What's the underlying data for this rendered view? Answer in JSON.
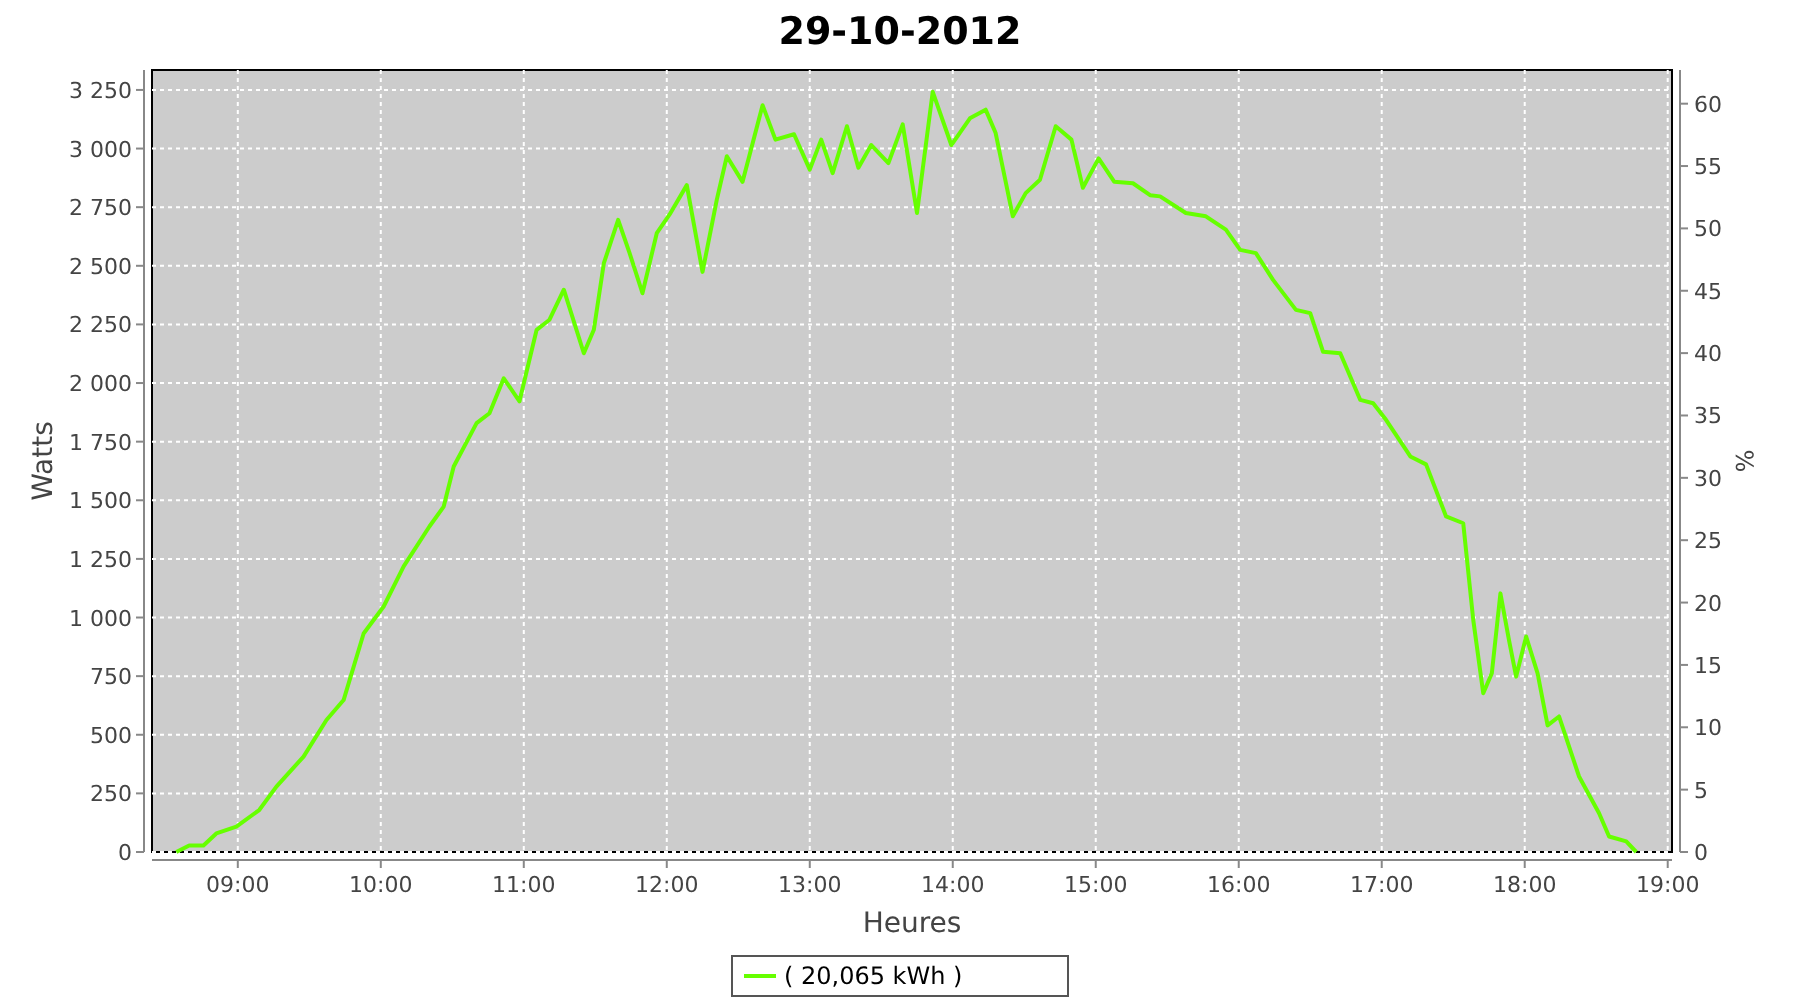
{
  "chart_data": {
    "type": "line",
    "title": "29-10-2012",
    "xlabel": "Heures",
    "ylabel": "Watts",
    "y2label": "%",
    "xlim": [
      8.4,
      19.03
    ],
    "xticks": [
      {
        "value": 9,
        "label": "09:00"
      },
      {
        "value": 10,
        "label": "10:00"
      },
      {
        "value": 11,
        "label": "11:00"
      },
      {
        "value": 12,
        "label": "12:00"
      },
      {
        "value": 13,
        "label": "13:00"
      },
      {
        "value": 14,
        "label": "14:00"
      },
      {
        "value": 15,
        "label": "15:00"
      },
      {
        "value": 16,
        "label": "16:00"
      },
      {
        "value": 17,
        "label": "17:00"
      },
      {
        "value": 18,
        "label": "18:00"
      },
      {
        "value": 19,
        "label": "19:00"
      }
    ],
    "ylim": [
      0,
      3335
    ],
    "yticks": [
      0,
      250,
      500,
      750,
      {
        "value": 1000,
        "label": "1 000"
      },
      {
        "value": 1250,
        "label": "1 250"
      },
      {
        "value": 1500,
        "label": "1 500"
      },
      {
        "value": 1750,
        "label": "1 750"
      },
      {
        "value": 2000,
        "label": "2 000"
      },
      {
        "value": 2250,
        "label": "2 250"
      },
      {
        "value": 2500,
        "label": "2 500"
      },
      {
        "value": 2750,
        "label": "2 750"
      },
      {
        "value": 3000,
        "label": "3 000"
      },
      {
        "value": 3250,
        "label": "3 250"
      }
    ],
    "y2lim": [
      0,
      62.7
    ],
    "y2ticks": [
      0,
      5,
      10,
      15,
      20,
      25,
      30,
      35,
      40,
      45,
      50,
      55,
      60
    ],
    "grid": true,
    "legend": "bottom",
    "marker": "none",
    "line_style": "solid",
    "x": [
      8.57,
      8.66,
      8.76,
      8.85,
      8.99,
      9.15,
      9.27,
      9.46,
      9.62,
      9.74,
      9.88,
      10.02,
      10.16,
      10.34,
      10.44,
      10.51,
      10.67,
      10.76,
      10.86,
      10.97,
      11.09,
      11.18,
      11.28,
      11.42,
      11.49,
      11.56,
      11.66,
      11.74,
      11.83,
      11.93,
      12.02,
      12.14,
      12.25,
      12.35,
      12.42,
      12.53,
      12.67,
      12.76,
      12.89,
      13.0,
      13.08,
      13.16,
      13.26,
      13.34,
      13.43,
      13.55,
      13.65,
      13.75,
      13.86,
      13.99,
      14.12,
      14.23,
      14.3,
      14.42,
      14.51,
      14.61,
      14.72,
      14.83,
      14.91,
      15.02,
      15.13,
      15.26,
      15.38,
      15.45,
      15.63,
      15.77,
      15.91,
      16.01,
      16.12,
      16.24,
      16.4,
      16.5,
      16.59,
      16.71,
      16.85,
      16.94,
      17.03,
      17.2,
      17.31,
      17.45,
      17.57,
      17.64,
      17.71,
      17.77,
      17.83,
      17.89,
      17.94,
      18.01,
      18.09,
      18.16,
      18.24,
      18.38,
      18.52,
      18.59,
      18.71,
      18.78
    ],
    "series": [
      {
        "name": "( 20,065 kWh )",
        "color": "#66ff00",
        "values": [
          0,
          28,
          28,
          79,
          108,
          179,
          279,
          407,
          563,
          648,
          932,
          1047,
          1218,
          1388,
          1473,
          1644,
          1829,
          1871,
          2020,
          1922,
          2227,
          2270,
          2398,
          2127,
          2227,
          2511,
          2696,
          2554,
          2383,
          2639,
          2719,
          2844,
          2474,
          2782,
          2967,
          2858,
          3185,
          3038,
          3061,
          2910,
          3038,
          2895,
          3095,
          2918,
          3015,
          2938,
          3103,
          2725,
          3242,
          3015,
          3129,
          3166,
          3066,
          2711,
          2810,
          2867,
          3095,
          3038,
          2833,
          2958,
          2858,
          2852,
          2801,
          2796,
          2725,
          2711,
          2654,
          2568,
          2554,
          2440,
          2312,
          2298,
          2133,
          2127,
          1928,
          1914,
          1843,
          1687,
          1653,
          1431,
          1402,
          990,
          677,
          762,
          1103,
          904,
          748,
          919,
          762,
          540,
          578,
          322,
          165,
          66,
          45,
          0
        ]
      }
    ]
  }
}
